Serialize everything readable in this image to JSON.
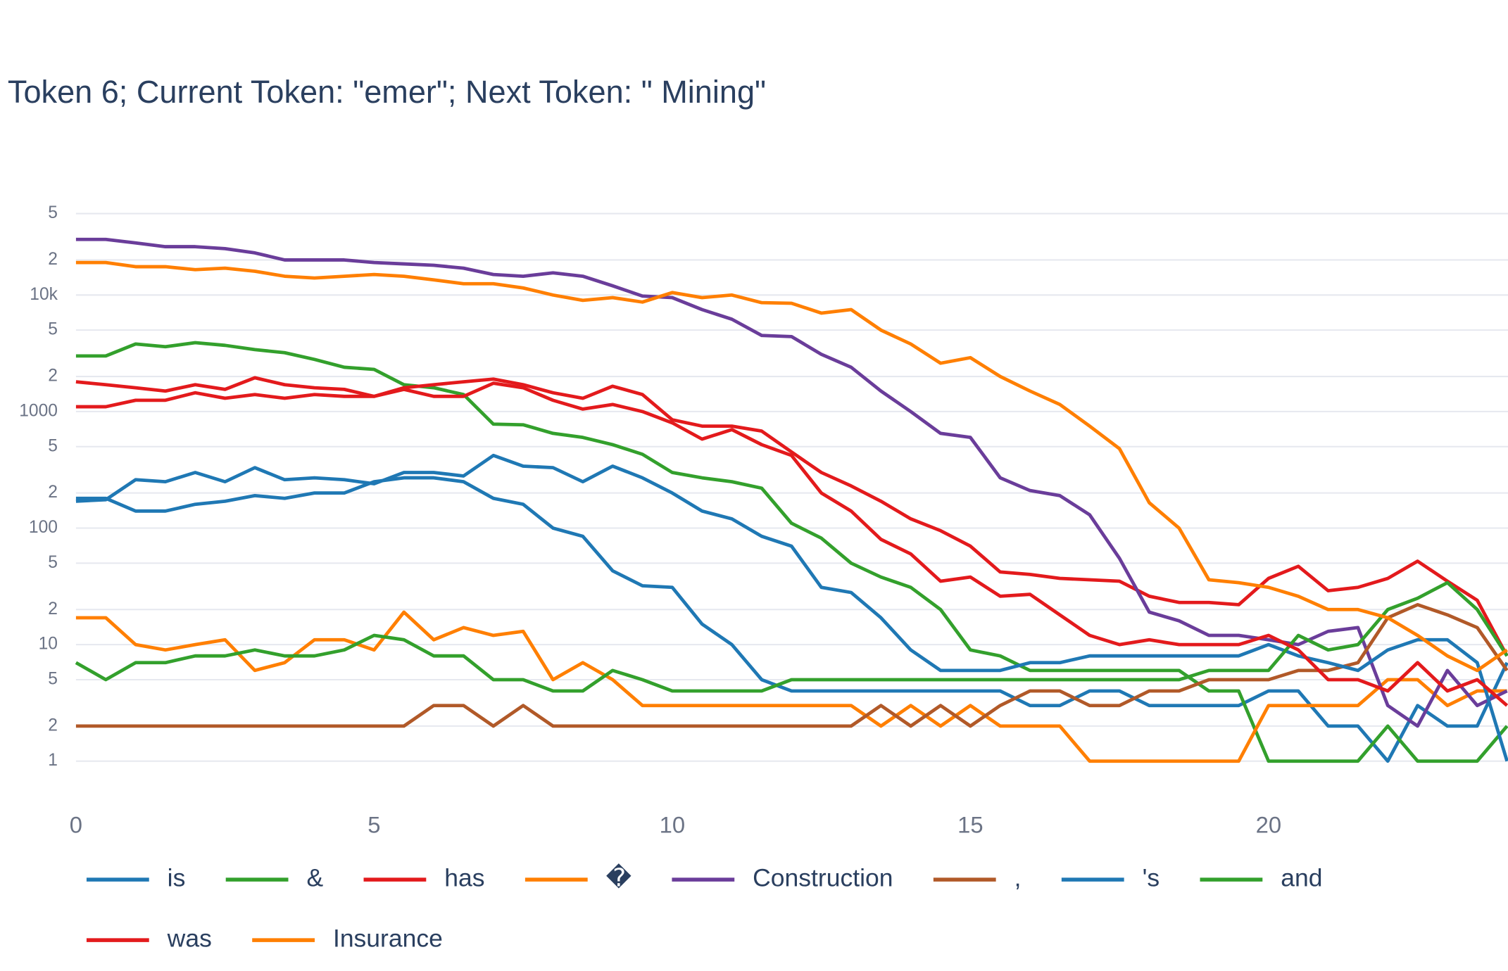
{
  "chart_data": {
    "type": "line",
    "title": "Token 6; Current Token: \"emer\"; Next Token: \" Mining\"",
    "log_y": true,
    "grid": true,
    "legend": "bottom",
    "x": [
      0,
      0.5,
      1,
      1.5,
      2,
      2.5,
      3,
      3.5,
      4,
      4.5,
      5,
      5.5,
      6,
      6.5,
      7,
      7.5,
      8,
      8.5,
      9,
      9.5,
      10,
      10.5,
      11,
      11.5,
      12,
      12.5,
      13,
      13.5,
      14,
      14.5,
      15,
      15.5,
      16,
      16.5,
      17,
      17.5,
      18,
      18.5,
      19,
      19.5,
      20,
      20.5,
      21,
      21.5,
      22,
      22.5,
      23,
      23.5,
      24
    ],
    "xlim": [
      0,
      24
    ],
    "xticks": [
      0,
      5,
      10,
      15,
      20
    ],
    "ylim": [
      0.4,
      92000
    ],
    "yticks": [
      1,
      {
        "value": 2,
        "label": "2"
      },
      {
        "value": 5,
        "label": "5"
      },
      10,
      {
        "value": 20,
        "label": "2"
      },
      {
        "value": 50,
        "label": "5"
      },
      100,
      {
        "value": 200,
        "label": "2"
      },
      {
        "value": 500,
        "label": "5"
      },
      1000,
      {
        "value": 2000,
        "label": "2"
      },
      {
        "value": 5000,
        "label": "5"
      },
      {
        "value": 10000,
        "label": "10k"
      },
      {
        "value": 20000,
        "label": "2"
      },
      {
        "value": 50000,
        "label": "5"
      }
    ],
    "series": [
      {
        "name": "is",
        "color": "#1f78b4",
        "values": [
          180,
          180,
          140,
          140,
          160,
          170,
          190,
          180,
          200,
          200,
          250,
          270,
          270,
          250,
          180,
          160,
          100,
          85,
          43,
          32,
          31,
          15,
          10,
          5,
          4,
          4,
          4,
          4,
          4,
          4,
          4,
          4,
          3,
          3,
          4,
          4,
          3,
          3,
          3,
          3,
          4,
          4,
          2,
          2,
          1,
          3,
          2,
          2,
          7
        ]
      },
      {
        "name": "&",
        "color": "#33a02c",
        "values": [
          3000,
          3000,
          3800,
          3600,
          3900,
          3700,
          3400,
          3200,
          2800,
          2400,
          2300,
          1700,
          1600,
          1400,
          780,
          770,
          650,
          600,
          520,
          430,
          300,
          270,
          250,
          220,
          110,
          82,
          50,
          38,
          31,
          20,
          9,
          8,
          6,
          6,
          6,
          6,
          6,
          6,
          4,
          4,
          1,
          1,
          1,
          1,
          2,
          1,
          1,
          1,
          2
        ]
      },
      {
        "name": "has",
        "color": "#e31a1c",
        "values": [
          1800,
          1700,
          1600,
          1500,
          1700,
          1550,
          1950,
          1700,
          1600,
          1550,
          1350,
          1600,
          1700,
          1800,
          1900,
          1700,
          1450,
          1300,
          1650,
          1400,
          850,
          750,
          750,
          680,
          450,
          300,
          230,
          170,
          120,
          95,
          70,
          42,
          40,
          37,
          36,
          35,
          26,
          23,
          23,
          22,
          37,
          47,
          29,
          31,
          37,
          52,
          35,
          24,
          8
        ]
      },
      {
        "name": "�",
        "color": "#ff7f00",
        "values": [
          17,
          17,
          10,
          9,
          10,
          11,
          6,
          7,
          11,
          11,
          9,
          19,
          11,
          14,
          12,
          13,
          5,
          7,
          5,
          3,
          3,
          3,
          3,
          3,
          3,
          3,
          3,
          2,
          3,
          2,
          3,
          2,
          2,
          2,
          1,
          1,
          1,
          1,
          1,
          1,
          3,
          3,
          3,
          3,
          5,
          5,
          3,
          4,
          4
        ]
      },
      {
        "name": "Construction",
        "color": "#6a3d9a",
        "values": [
          30000,
          30000,
          28000,
          26000,
          26000,
          25000,
          23000,
          20000,
          20000,
          20000,
          19000,
          18500,
          18000,
          17000,
          15000,
          14500,
          15500,
          14500,
          12000,
          9800,
          9500,
          7500,
          6200,
          4500,
          4400,
          3100,
          2400,
          1500,
          1000,
          650,
          600,
          270,
          210,
          190,
          130,
          55,
          19,
          16,
          12,
          12,
          11,
          10,
          13,
          14,
          3,
          2,
          6,
          3,
          4
        ]
      },
      {
        "name": ",",
        "color": "#b15928",
        "values": [
          2,
          2,
          2,
          2,
          2,
          2,
          2,
          2,
          2,
          2,
          2,
          2,
          3,
          3,
          2,
          3,
          2,
          2,
          2,
          2,
          2,
          2,
          2,
          2,
          2,
          2,
          2,
          3,
          2,
          3,
          2,
          3,
          4,
          4,
          3,
          3,
          4,
          4,
          5,
          5,
          5,
          6,
          6,
          7,
          17,
          22,
          18,
          14,
          6
        ]
      },
      {
        "name": "'s",
        "color": "#1f78b4",
        "values": [
          170,
          175,
          260,
          250,
          300,
          250,
          330,
          260,
          270,
          260,
          240,
          300,
          300,
          280,
          420,
          340,
          330,
          250,
          340,
          270,
          200,
          140,
          120,
          85,
          70,
          31,
          28,
          17,
          9,
          6,
          6,
          6,
          7,
          7,
          8,
          8,
          8,
          8,
          8,
          8,
          10,
          8,
          7,
          6,
          9,
          11,
          11,
          7,
          1
        ]
      },
      {
        "name": "and",
        "color": "#33a02c",
        "values": [
          7,
          5,
          7,
          7,
          8,
          8,
          9,
          8,
          8,
          9,
          12,
          11,
          8,
          8,
          5,
          5,
          4,
          4,
          6,
          5,
          4,
          4,
          4,
          4,
          5,
          5,
          5,
          5,
          5,
          5,
          5,
          5,
          5,
          5,
          5,
          5,
          5,
          5,
          6,
          6,
          6,
          12,
          9,
          10,
          20,
          25,
          34,
          20,
          8
        ]
      },
      {
        "name": "was",
        "color": "#e31a1c",
        "values": [
          1100,
          1100,
          1250,
          1250,
          1450,
          1300,
          1400,
          1300,
          1400,
          1350,
          1350,
          1550,
          1350,
          1350,
          1750,
          1600,
          1250,
          1050,
          1150,
          1000,
          800,
          580,
          700,
          520,
          420,
          200,
          140,
          80,
          60,
          35,
          38,
          26,
          27,
          18,
          12,
          10,
          11,
          10,
          10,
          10,
          12,
          9,
          5,
          5,
          4,
          7,
          4,
          5,
          3
        ]
      },
      {
        "name": "Insurance",
        "color": "#ff7f00",
        "values": [
          19000,
          19000,
          17500,
          17500,
          16500,
          17000,
          16000,
          14500,
          14000,
          14500,
          15000,
          14500,
          13500,
          12500,
          12500,
          11500,
          10000,
          9000,
          9500,
          8700,
          10500,
          9500,
          10000,
          8600,
          8500,
          7000,
          7500,
          5000,
          3800,
          2600,
          2900,
          2000,
          1500,
          1150,
          750,
          480,
          165,
          100,
          36,
          34,
          31,
          26,
          20,
          20,
          17,
          12,
          8,
          6,
          9
        ]
      }
    ]
  }
}
